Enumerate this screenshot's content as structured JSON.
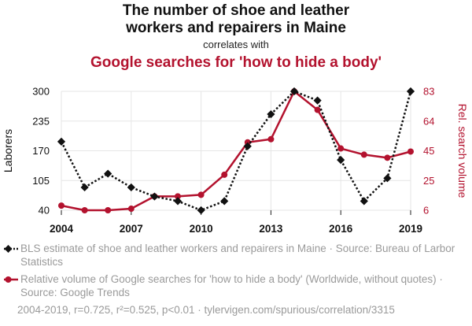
{
  "title": {
    "line1": "The number of shoe and leather",
    "line2": "workers and repairers in Maine",
    "connector": "correlates with",
    "line3": "Google searches for 'how to hide a body'"
  },
  "colors": {
    "series1": "#111111",
    "series2": "#b3122e",
    "grid": "#e6e6e6",
    "legend_text": "#9a9a9a"
  },
  "legend": {
    "item1": "BLS estimate of shoe and leather workers and repairers in Maine · Source: Bureau of Larbor Statistics",
    "item2": "Relative volume of Google searches for 'how to hide a body' (Worldwide, without quotes) · Source: Google Trends"
  },
  "stats": "2004-2019, r=0.725, r²=0.525, p<0.01 · tylervigen.com/spurious/correlation/3315",
  "chart_data": {
    "type": "line",
    "x": [
      2004,
      2005,
      2006,
      2007,
      2008,
      2009,
      2010,
      2011,
      2012,
      2013,
      2014,
      2015,
      2016,
      2017,
      2018,
      2019
    ],
    "xticks": [
      "2004",
      "2007",
      "2010",
      "2013",
      "2016",
      "2019"
    ],
    "xlim": [
      2004,
      2019
    ],
    "y_left": {
      "label": "Laborers",
      "ticks": [
        "40",
        "105",
        "170",
        "235",
        "300"
      ],
      "ylim": [
        40,
        300
      ]
    },
    "y_right": {
      "label": "Rel. search volume",
      "ticks": [
        "6",
        "25",
        "45",
        "64",
        "83"
      ],
      "ylim": [
        6,
        83
      ]
    },
    "grid": true,
    "series": [
      {
        "axis": "left",
        "style": "dotted-diamond",
        "values": [
          190,
          90,
          120,
          90,
          70,
          60,
          40,
          60,
          180,
          250,
          300,
          280,
          150,
          60,
          110,
          300
        ]
      },
      {
        "axis": "right",
        "style": "solid-circle",
        "values": [
          9,
          6,
          6,
          7,
          15,
          15,
          16,
          29,
          50,
          52,
          83,
          71,
          46,
          42,
          40,
          44
        ]
      }
    ]
  }
}
